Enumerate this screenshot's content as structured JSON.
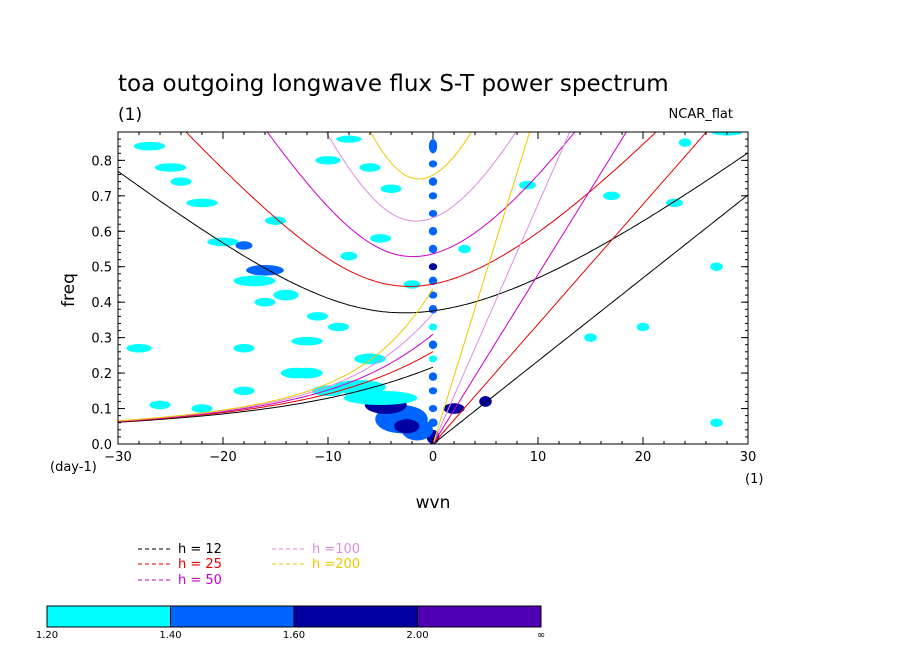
{
  "chart_data": {
    "type": "contour",
    "title": "toa outgoing longwave flux S-T power spectrum",
    "subtitle_left": "(1)",
    "subtitle_right": "NCAR_flat",
    "xlabel": "wvn",
    "ylabel": "freq",
    "x_unit_label": "(1)",
    "y_unit_label": "(day-1)",
    "xlim": [
      -30,
      30
    ],
    "ylim": [
      0,
      0.88
    ],
    "xticks": [
      -30,
      -20,
      -10,
      0,
      10,
      20,
      30
    ],
    "xtick_labels": [
      "−30",
      "−20",
      "−10",
      "0",
      "10",
      "20",
      "30"
    ],
    "yticks": [
      0.0,
      0.1,
      0.2,
      0.3,
      0.4,
      0.5,
      0.6,
      0.7,
      0.8
    ],
    "ytick_labels": [
      "0.0",
      "0.1",
      "0.2",
      "0.3",
      "0.4",
      "0.5",
      "0.6",
      "0.7",
      "0.8"
    ],
    "dispersion_curves": [
      {
        "name": "h = 12",
        "h": 12,
        "color": "#000000"
      },
      {
        "name": "h = 25",
        "h": 25,
        "color": "#e00000"
      },
      {
        "name": "h = 50",
        "h": 50,
        "color": "#c800c8"
      },
      {
        "name": "h =100",
        "h": 100,
        "color": "#dc8cdc"
      },
      {
        "name": "h =200",
        "h": 200,
        "color": "#f0c800"
      }
    ],
    "contour_levels": {
      "boundaries": [
        "1.20",
        "1.40",
        "1.60",
        "2.00",
        "∞"
      ],
      "colors": [
        "#00ffff",
        "#0064ff",
        "#0000a0",
        "#5000b4"
      ]
    },
    "blobs": [
      {
        "x": 0,
        "y": 0.02,
        "rx": 0.6,
        "ry": 0.02,
        "level": 2
      },
      {
        "x": 0,
        "y": 0.06,
        "rx": 0.45,
        "ry": 0.012,
        "level": 1
      },
      {
        "x": 0,
        "y": 0.1,
        "rx": 0.4,
        "ry": 0.01,
        "level": 1
      },
      {
        "x": 0,
        "y": 0.15,
        "rx": 0.4,
        "ry": 0.01,
        "level": 1
      },
      {
        "x": 0,
        "y": 0.19,
        "rx": 0.4,
        "ry": 0.012,
        "level": 1
      },
      {
        "x": 0,
        "y": 0.24,
        "rx": 0.4,
        "ry": 0.01,
        "level": 0
      },
      {
        "x": 0,
        "y": 0.28,
        "rx": 0.4,
        "ry": 0.012,
        "level": 1
      },
      {
        "x": 0,
        "y": 0.33,
        "rx": 0.4,
        "ry": 0.01,
        "level": 0
      },
      {
        "x": 0,
        "y": 0.38,
        "rx": 0.4,
        "ry": 0.012,
        "level": 1
      },
      {
        "x": 0,
        "y": 0.42,
        "rx": 0.4,
        "ry": 0.01,
        "level": 1
      },
      {
        "x": 0,
        "y": 0.46,
        "rx": 0.4,
        "ry": 0.012,
        "level": 1
      },
      {
        "x": 0,
        "y": 0.5,
        "rx": 0.4,
        "ry": 0.01,
        "level": 2
      },
      {
        "x": 0,
        "y": 0.55,
        "rx": 0.4,
        "ry": 0.012,
        "level": 1
      },
      {
        "x": 0,
        "y": 0.6,
        "rx": 0.4,
        "ry": 0.012,
        "level": 1
      },
      {
        "x": 0,
        "y": 0.65,
        "rx": 0.4,
        "ry": 0.01,
        "level": 1
      },
      {
        "x": 0,
        "y": 0.7,
        "rx": 0.4,
        "ry": 0.01,
        "level": 1
      },
      {
        "x": 0,
        "y": 0.74,
        "rx": 0.4,
        "ry": 0.012,
        "level": 1
      },
      {
        "x": 0,
        "y": 0.79,
        "rx": 0.4,
        "ry": 0.01,
        "level": 1
      },
      {
        "x": 0,
        "y": 0.84,
        "rx": 0.4,
        "ry": 0.02,
        "level": 1
      },
      {
        "x": -1.5,
        "y": 0.04,
        "rx": 1.5,
        "ry": 0.03,
        "level": 1
      },
      {
        "x": -3,
        "y": 0.07,
        "rx": 2.5,
        "ry": 0.04,
        "level": 1
      },
      {
        "x": -4.5,
        "y": 0.11,
        "rx": 2.0,
        "ry": 0.025,
        "level": 2
      },
      {
        "x": -5,
        "y": 0.13,
        "rx": 3.5,
        "ry": 0.02,
        "level": 0
      },
      {
        "x": -2.5,
        "y": 0.05,
        "rx": 1.2,
        "ry": 0.02,
        "level": 2
      },
      {
        "x": -7,
        "y": 0.16,
        "rx": 2.5,
        "ry": 0.02,
        "level": 0
      },
      {
        "x": -10,
        "y": 0.15,
        "rx": 1.5,
        "ry": 0.015,
        "level": 0
      },
      {
        "x": -12,
        "y": 0.2,
        "rx": 1.5,
        "ry": 0.015,
        "level": 0
      },
      {
        "x": -6,
        "y": 0.24,
        "rx": 1.5,
        "ry": 0.015,
        "level": 0
      },
      {
        "x": -12,
        "y": 0.29,
        "rx": 1.5,
        "ry": 0.012,
        "level": 0
      },
      {
        "x": -14,
        "y": 0.42,
        "rx": 1.2,
        "ry": 0.015,
        "level": 0
      },
      {
        "x": -17,
        "y": 0.46,
        "rx": 2.0,
        "ry": 0.015,
        "level": 0
      },
      {
        "x": -16,
        "y": 0.49,
        "rx": 1.8,
        "ry": 0.015,
        "level": 1
      },
      {
        "x": -20,
        "y": 0.57,
        "rx": 1.5,
        "ry": 0.012,
        "level": 0
      },
      {
        "x": -18,
        "y": 0.56,
        "rx": 0.8,
        "ry": 0.012,
        "level": 1
      },
      {
        "x": -22,
        "y": 0.68,
        "rx": 1.5,
        "ry": 0.012,
        "level": 0
      },
      {
        "x": -25,
        "y": 0.78,
        "rx": 1.5,
        "ry": 0.012,
        "level": 0
      },
      {
        "x": -27,
        "y": 0.84,
        "rx": 1.5,
        "ry": 0.012,
        "level": 0
      },
      {
        "x": -10,
        "y": 0.8,
        "rx": 1.2,
        "ry": 0.012,
        "level": 0
      },
      {
        "x": -8,
        "y": 0.86,
        "rx": 1.2,
        "ry": 0.01,
        "level": 0
      },
      {
        "x": -4,
        "y": 0.72,
        "rx": 1.0,
        "ry": 0.012,
        "level": 0
      },
      {
        "x": -11,
        "y": 0.36,
        "rx": 1.0,
        "ry": 0.012,
        "level": 0
      },
      {
        "x": -9,
        "y": 0.33,
        "rx": 1.0,
        "ry": 0.012,
        "level": 0
      },
      {
        "x": -13,
        "y": 0.2,
        "rx": 1.5,
        "ry": 0.015,
        "level": 0
      },
      {
        "x": -28,
        "y": 0.27,
        "rx": 1.2,
        "ry": 0.012,
        "level": 0
      },
      {
        "x": -5,
        "y": 0.58,
        "rx": 1.0,
        "ry": 0.012,
        "level": 0
      },
      {
        "x": 2,
        "y": 0.1,
        "rx": 1.0,
        "ry": 0.015,
        "level": 2
      },
      {
        "x": 5,
        "y": 0.12,
        "rx": 0.6,
        "ry": 0.015,
        "level": 2
      },
      {
        "x": 3,
        "y": 0.55,
        "rx": 0.6,
        "ry": 0.012,
        "level": 0
      },
      {
        "x": 9,
        "y": 0.73,
        "rx": 0.8,
        "ry": 0.012,
        "level": 0
      },
      {
        "x": 17,
        "y": 0.7,
        "rx": 0.8,
        "ry": 0.012,
        "level": 0
      },
      {
        "x": 23,
        "y": 0.68,
        "rx": 0.8,
        "ry": 0.012,
        "level": 0
      },
      {
        "x": 24,
        "y": 0.85,
        "rx": 0.6,
        "ry": 0.012,
        "level": 0
      },
      {
        "x": 28,
        "y": 0.88,
        "rx": 1.5,
        "ry": 0.01,
        "level": 0
      },
      {
        "x": 20,
        "y": 0.33,
        "rx": 0.6,
        "ry": 0.012,
        "level": 0
      },
      {
        "x": 27,
        "y": 0.5,
        "rx": 0.6,
        "ry": 0.012,
        "level": 0
      },
      {
        "x": 27,
        "y": 0.06,
        "rx": 0.6,
        "ry": 0.012,
        "level": 0
      },
      {
        "x": 15,
        "y": 0.3,
        "rx": 0.6,
        "ry": 0.012,
        "level": 0
      },
      {
        "x": -22,
        "y": 0.1,
        "rx": 1.0,
        "ry": 0.012,
        "level": 0
      },
      {
        "x": -26,
        "y": 0.11,
        "rx": 1.0,
        "ry": 0.012,
        "level": 0
      },
      {
        "x": -18,
        "y": 0.27,
        "rx": 1.0,
        "ry": 0.012,
        "level": 0
      },
      {
        "x": -16,
        "y": 0.4,
        "rx": 1.0,
        "ry": 0.012,
        "level": 0
      },
      {
        "x": -24,
        "y": 0.74,
        "rx": 1.0,
        "ry": 0.012,
        "level": 0
      },
      {
        "x": -15,
        "y": 0.63,
        "rx": 1.0,
        "ry": 0.012,
        "level": 0
      },
      {
        "x": -18,
        "y": 0.15,
        "rx": 1.0,
        "ry": 0.012,
        "level": 0
      },
      {
        "x": -6,
        "y": 0.78,
        "rx": 1.0,
        "ry": 0.012,
        "level": 0
      },
      {
        "x": -2,
        "y": 0.45,
        "rx": 0.8,
        "ry": 0.012,
        "level": 0
      },
      {
        "x": -8,
        "y": 0.53,
        "rx": 0.8,
        "ry": 0.012,
        "level": 0
      }
    ]
  }
}
